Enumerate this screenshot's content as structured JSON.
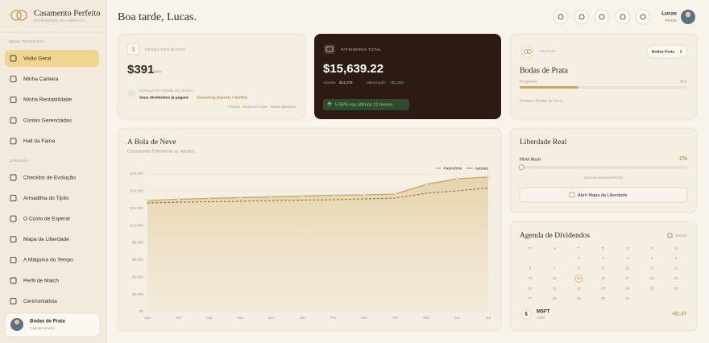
{
  "sidebar": {
    "brand": "Casamento Perfeito",
    "tagline": "PATRIMÔNIO NA AMÉRICA",
    "menu_title": "MENU PRINCIPAL",
    "menu": [
      "Visão Geral",
      "Minha Carteira",
      "Minha Rentabilidade",
      "Contas Gerenciadas",
      "Hall da Fama"
    ],
    "journey_title": "JORNADA",
    "journey": [
      "Checklist de Evolução",
      "Armadilha do Tijolo",
      "O Custo de Esperar",
      "Mapa da Liberdade",
      "A Máquina do Tempo",
      "Perfil de Match",
      "Cerimonialista"
    ],
    "user": {
      "level": "Bodas de Prata",
      "status": "Capitalizado(a)"
    }
  },
  "header": {
    "greeting": "Boa tarde, Lucas.",
    "user_name": "Lucas",
    "user_tier": "PRATA"
  },
  "income": {
    "label": "RENDA PROJETADA",
    "amount": "$391",
    "period": "/ano",
    "badge": "CONQUISTA DESBLOQUEADA",
    "text": "Seus dividendos já pagam:",
    "highlight": "Streaming (Spotify / Netflix)",
    "next": "Próximo: Internet em casa · Faltam $209/ano"
  },
  "total": {
    "label": "PATRIMÔNIO TOTAL",
    "amount": "$15,639.22",
    "contrib_label": "Aportes",
    "contrib": "$14,375",
    "gain_label": "Valorização",
    "gain": "+$1,263",
    "change": "5.56% nos últimos 12 meses"
  },
  "status": {
    "label": "STATUS",
    "badge": "Bodas Prata",
    "title": "Bodas de Prata",
    "progress_label": "Progresso",
    "progress": 35,
    "progress_text": "35%",
    "next": "Próximo: Bodas de Ouro"
  },
  "freedom": {
    "title": "Liberdade Real",
    "level": 1,
    "level_text": "1%",
    "level_label": "Nível Atual",
    "zone": "Zona de autossuficiência",
    "button": "Abrir Mapa da Liberdade"
  },
  "dividends": {
    "title": "Agenda de Dividendos",
    "month": "JULHO",
    "weekdays": [
      "D",
      "S",
      "T",
      "Q",
      "Q",
      "S",
      "S"
    ],
    "weeks": [
      [
        null,
        null,
        1,
        2,
        3,
        4,
        5
      ],
      [
        6,
        7,
        8,
        9,
        10,
        11,
        12
      ],
      [
        13,
        14,
        15,
        16,
        17,
        18,
        19
      ],
      [
        20,
        21,
        22,
        23,
        24,
        25,
        26
      ],
      [
        27,
        28,
        29,
        30,
        31,
        null,
        null
      ]
    ],
    "selected": 15,
    "next": {
      "ticker": "MSFT",
      "date": "15/07",
      "amount": "+$1.37"
    }
  },
  "chart_data": {
    "type": "line",
    "title": "A Bola de Neve",
    "subtitle": "Crescimento Patrimonial vs. Aportes",
    "categories": [
      "Ago",
      "Set",
      "Out",
      "Nov",
      "Dez",
      "Jan",
      "Fev",
      "Mar",
      "Abr",
      "Mai",
      "Jun",
      "Jul"
    ],
    "series": [
      {
        "name": "Patrimônio",
        "color": "#c9a45a",
        "values": [
          12900,
          13050,
          13150,
          13250,
          13330,
          13430,
          13520,
          13570,
          13660,
          14780,
          15440,
          15639
        ]
      },
      {
        "name": "Aportes",
        "color": "#8a6a30",
        "dashed": true,
        "values": [
          12630,
          12720,
          12770,
          12820,
          12910,
          12960,
          13000,
          13100,
          13190,
          13750,
          14040,
          14375
        ]
      }
    ],
    "ylim": [
      0,
      16000
    ],
    "yticks": [
      {
        "value": 0,
        "label": "$0"
      },
      {
        "value": 2000,
        "label": "$2,000"
      },
      {
        "value": 4000,
        "label": "$4,000"
      },
      {
        "value": 6000,
        "label": "$6,000"
      },
      {
        "value": 8000,
        "label": "$8,000"
      },
      {
        "value": 10000,
        "label": "$10,000"
      },
      {
        "value": 12000,
        "label": "$12,000"
      },
      {
        "value": 14000,
        "label": "$14,000"
      },
      {
        "value": 16000,
        "label": "$16,000"
      }
    ],
    "grid": true
  }
}
